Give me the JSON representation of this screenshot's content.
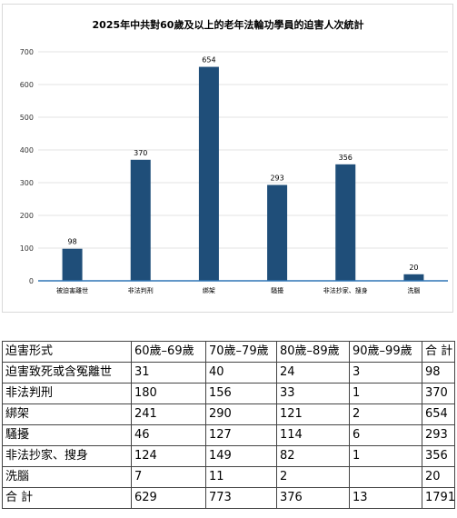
{
  "chart_data": {
    "type": "bar",
    "title": "2025年中共對60歲及以上的老年法輪功學員的迫害人次統計",
    "categories": [
      "被迫害離世",
      "非法判刑",
      "綁架",
      "騷擾",
      "非法抄家、搜身",
      "洗腦"
    ],
    "values": [
      98,
      370,
      654,
      293,
      356,
      20
    ],
    "ylim": [
      0,
      700
    ],
    "yticks": [
      0,
      100,
      200,
      300,
      400,
      500,
      600,
      700
    ],
    "xlabel": "",
    "ylabel": "",
    "grid": true,
    "bar_color": "#1f4e79"
  },
  "table": {
    "header": [
      "迫害形式",
      "60歲–69歲",
      "70歲–79歲",
      "80歲–89歲",
      "90歲–99歲",
      "合 計"
    ],
    "rows": [
      [
        "迫害致死或含冤離世",
        "31",
        "40",
        "24",
        "3",
        "98"
      ],
      [
        "非法判刑",
        "180",
        "156",
        "33",
        "1",
        "370"
      ],
      [
        "綁架",
        "241",
        "290",
        "121",
        "2",
        "654"
      ],
      [
        "騷擾",
        "46",
        "127",
        "114",
        "6",
        "293"
      ],
      [
        "非法抄家、搜身",
        "124",
        "149",
        "82",
        "1",
        "356"
      ],
      [
        "洗腦",
        "7",
        "11",
        "2",
        "",
        "20"
      ],
      [
        "合 計",
        "629",
        "773",
        "376",
        "13",
        "1791"
      ]
    ]
  }
}
